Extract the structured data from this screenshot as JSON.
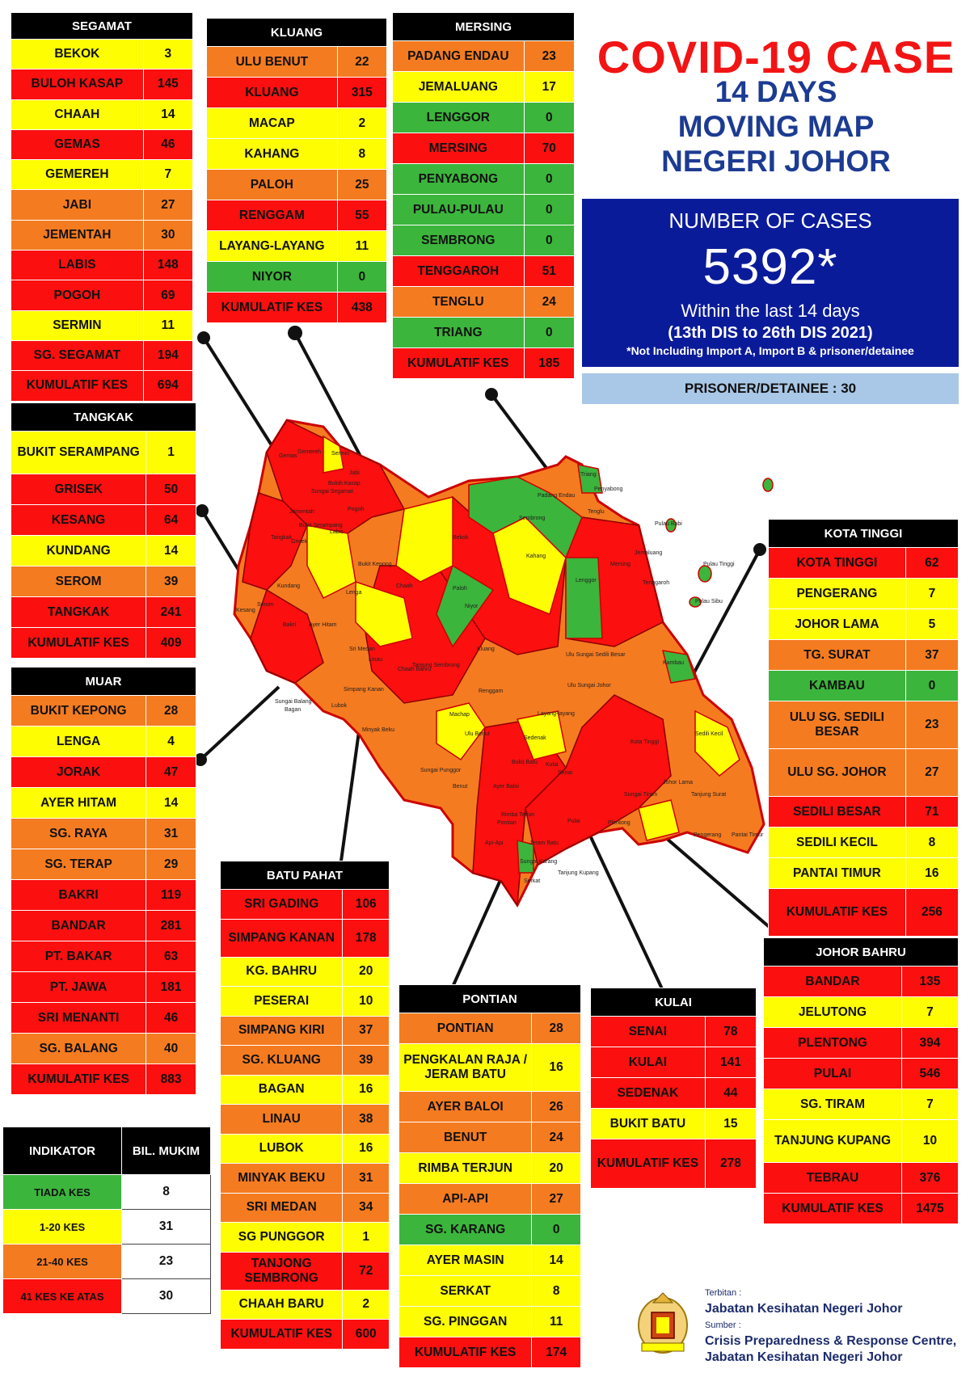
{
  "title": {
    "line1": "COVID-19 CASE",
    "line2": "14 DAYS",
    "line3": "MOVING MAP",
    "line4": "NEGERI JOHOR"
  },
  "summary": {
    "label": "NUMBER OF CASES",
    "total": "5392*",
    "period": "Within the last 14 days",
    "range": "(13th DIS to 26th DIS 2021)",
    "note": "*Not Including Import A, Import B & prisoner/detainee",
    "prisoner": "PRISONER/DETAINEE : 30"
  },
  "colors": {
    "red": "#fb0f0f",
    "orange": "#f57b20",
    "yellow": "#fefd02",
    "green": "#3bb53b"
  },
  "districts": {
    "segamat": {
      "name": "SEGAMAT",
      "rows": [
        {
          "area": "BEKOK",
          "cases": "3",
          "level": "yel"
        },
        {
          "area": "BULOH KASAP",
          "cases": "145",
          "level": "red"
        },
        {
          "area": "CHAAH",
          "cases": "14",
          "level": "yel"
        },
        {
          "area": "GEMAS",
          "cases": "46",
          "level": "red"
        },
        {
          "area": "GEMEREH",
          "cases": "7",
          "level": "yel"
        },
        {
          "area": "JABI",
          "cases": "27",
          "level": "ora"
        },
        {
          "area": "JEMENTAH",
          "cases": "30",
          "level": "ora"
        },
        {
          "area": "LABIS",
          "cases": "148",
          "level": "red"
        },
        {
          "area": "POGOH",
          "cases": "69",
          "level": "red"
        },
        {
          "area": "SERMIN",
          "cases": "11",
          "level": "yel"
        },
        {
          "area": "SG. SEGAMAT",
          "cases": "194",
          "level": "red"
        },
        {
          "area": "KUMULATIF KES",
          "cases": "694",
          "level": "red"
        }
      ]
    },
    "kluang": {
      "name": "KLUANG",
      "rows": [
        {
          "area": "ULU BENUT",
          "cases": "22",
          "level": "ora"
        },
        {
          "area": "KLUANG",
          "cases": "315",
          "level": "red"
        },
        {
          "area": "MACAP",
          "cases": "2",
          "level": "yel"
        },
        {
          "area": "KAHANG",
          "cases": "8",
          "level": "yel"
        },
        {
          "area": "PALOH",
          "cases": "25",
          "level": "ora"
        },
        {
          "area": "RENGGAM",
          "cases": "55",
          "level": "red"
        },
        {
          "area": "LAYANG-LAYANG",
          "cases": "11",
          "level": "yel"
        },
        {
          "area": "NIYOR",
          "cases": "0",
          "level": "gre"
        },
        {
          "area": "KUMULATIF KES",
          "cases": "438",
          "level": "red"
        }
      ]
    },
    "mersing": {
      "name": "MERSING",
      "rows": [
        {
          "area": "PADANG ENDAU",
          "cases": "23",
          "level": "ora"
        },
        {
          "area": "JEMALUANG",
          "cases": "17",
          "level": "yel"
        },
        {
          "area": "LENGGOR",
          "cases": "0",
          "level": "gre"
        },
        {
          "area": "MERSING",
          "cases": "70",
          "level": "red"
        },
        {
          "area": "PENYABONG",
          "cases": "0",
          "level": "gre"
        },
        {
          "area": "PULAU-PULAU",
          "cases": "0",
          "level": "gre"
        },
        {
          "area": "SEMBRONG",
          "cases": "0",
          "level": "gre"
        },
        {
          "area": "TENGGAROH",
          "cases": "51",
          "level": "red"
        },
        {
          "area": "TENGLU",
          "cases": "24",
          "level": "ora"
        },
        {
          "area": "TRIANG",
          "cases": "0",
          "level": "gre"
        },
        {
          "area": "KUMULATIF KES",
          "cases": "185",
          "level": "red"
        }
      ]
    },
    "tangkak": {
      "name": "TANGKAK",
      "rows": [
        {
          "area": "BUKIT SERAMPANG",
          "cases": "1",
          "level": "yel",
          "tall": true
        },
        {
          "area": "GRISEK",
          "cases": "50",
          "level": "red"
        },
        {
          "area": "KESANG",
          "cases": "64",
          "level": "red"
        },
        {
          "area": "KUNDANG",
          "cases": "14",
          "level": "yel"
        },
        {
          "area": "SEROM",
          "cases": "39",
          "level": "ora"
        },
        {
          "area": "TANGKAK",
          "cases": "241",
          "level": "red"
        },
        {
          "area": "KUMULATIF KES",
          "cases": "409",
          "level": "red"
        }
      ]
    },
    "muar": {
      "name": "MUAR",
      "rows": [
        {
          "area": "BUKIT KEPONG",
          "cases": "28",
          "level": "ora"
        },
        {
          "area": "LENGA",
          "cases": "4",
          "level": "yel"
        },
        {
          "area": "JORAK",
          "cases": "47",
          "level": "red"
        },
        {
          "area": "AYER HITAM",
          "cases": "14",
          "level": "yel"
        },
        {
          "area": "SG. RAYA",
          "cases": "31",
          "level": "ora"
        },
        {
          "area": "SG. TERAP",
          "cases": "29",
          "level": "ora"
        },
        {
          "area": "BAKRI",
          "cases": "119",
          "level": "red"
        },
        {
          "area": "BANDAR",
          "cases": "281",
          "level": "red"
        },
        {
          "area": "PT. BAKAR",
          "cases": "63",
          "level": "red"
        },
        {
          "area": "PT. JAWA",
          "cases": "181",
          "level": "red"
        },
        {
          "area": "SRI MENANTI",
          "cases": "46",
          "level": "red"
        },
        {
          "area": "SG. BALANG",
          "cases": "40",
          "level": "ora"
        },
        {
          "area": "KUMULATIF KES",
          "cases": "883",
          "level": "red"
        }
      ]
    },
    "kota_tinggi": {
      "name": "KOTA TINGGI",
      "rows": [
        {
          "area": "KOTA TINGGI",
          "cases": "62",
          "level": "red"
        },
        {
          "area": "PENGERANG",
          "cases": "7",
          "level": "yel"
        },
        {
          "area": "JOHOR LAMA",
          "cases": "5",
          "level": "yel"
        },
        {
          "area": "TG. SURAT",
          "cases": "37",
          "level": "ora"
        },
        {
          "area": "KAMBAU",
          "cases": "0",
          "level": "gre"
        },
        {
          "area": "ULU SG. SEDILI BESAR",
          "cases": "23",
          "level": "ora",
          "tall": true
        },
        {
          "area": "ULU  SG. JOHOR",
          "cases": "27",
          "level": "ora",
          "tall": true
        },
        {
          "area": "SEDILI BESAR",
          "cases": "71",
          "level": "red"
        },
        {
          "area": "SEDILI KECIL",
          "cases": "8",
          "level": "yel"
        },
        {
          "area": "PANTAI TIMUR",
          "cases": "16",
          "level": "yel"
        },
        {
          "area": "KUMULATIF KES",
          "cases": "256",
          "level": "red",
          "tall": true
        }
      ]
    },
    "batu_pahat": {
      "name": "BATU PAHAT",
      "rows": [
        {
          "area": "SRI GADING",
          "cases": "106",
          "level": "red"
        },
        {
          "area": "SIMPANG KANAN",
          "cases": "178",
          "level": "red",
          "tall": true
        },
        {
          "area": "KG. BAHRU",
          "cases": "20",
          "level": "yel"
        },
        {
          "area": "PESERAI",
          "cases": "10",
          "level": "yel"
        },
        {
          "area": "SIMPANG KIRI",
          "cases": "37",
          "level": "ora"
        },
        {
          "area": "SG. KLUANG",
          "cases": "39",
          "level": "ora"
        },
        {
          "area": "BAGAN",
          "cases": "16",
          "level": "yel"
        },
        {
          "area": "LINAU",
          "cases": "38",
          "level": "ora"
        },
        {
          "area": "LUBOK",
          "cases": "16",
          "level": "yel"
        },
        {
          "area": "MINYAK BEKU",
          "cases": "31",
          "level": "ora"
        },
        {
          "area": "SRI MEDAN",
          "cases": "34",
          "level": "ora"
        },
        {
          "area": "SG PUNGGOR",
          "cases": "1",
          "level": "yel"
        },
        {
          "area": "TANJONG SEMBRONG",
          "cases": "72",
          "level": "red",
          "tall": true
        },
        {
          "area": "CHAAH BARU",
          "cases": "2",
          "level": "yel"
        },
        {
          "area": "KUMULATIF KES",
          "cases": "600",
          "level": "red"
        }
      ]
    },
    "pontian": {
      "name": "PONTIAN",
      "rows": [
        {
          "area": "PONTIAN",
          "cases": "28",
          "level": "ora"
        },
        {
          "area": "PENGKALAN RAJA / JERAM BATU",
          "cases": "16",
          "level": "yel",
          "tall": true
        },
        {
          "area": "AYER BALOI",
          "cases": "26",
          "level": "ora"
        },
        {
          "area": "BENUT",
          "cases": "24",
          "level": "ora"
        },
        {
          "area": "RIMBA TERJUN",
          "cases": "20",
          "level": "yel"
        },
        {
          "area": "API-API",
          "cases": "27",
          "level": "ora"
        },
        {
          "area": "SG. KARANG",
          "cases": "0",
          "level": "gre"
        },
        {
          "area": "AYER MASIN",
          "cases": "14",
          "level": "yel"
        },
        {
          "area": "SERKAT",
          "cases": "8",
          "level": "yel"
        },
        {
          "area": "SG. PINGGAN",
          "cases": "11",
          "level": "yel"
        },
        {
          "area": "KUMULATIF KES",
          "cases": "174",
          "level": "red"
        }
      ]
    },
    "kulai": {
      "name": "KULAI",
      "rows": [
        {
          "area": "SENAI",
          "cases": "78",
          "level": "red"
        },
        {
          "area": "KULAI",
          "cases": "141",
          "level": "red"
        },
        {
          "area": "SEDENAK",
          "cases": "44",
          "level": "red"
        },
        {
          "area": "BUKIT BATU",
          "cases": "15",
          "level": "yel"
        },
        {
          "area": "KUMULATIF KES",
          "cases": "278",
          "level": "red",
          "tall": true
        }
      ]
    },
    "johor_bahru": {
      "name": "JOHOR BAHRU",
      "rows": [
        {
          "area": "BANDAR",
          "cases": "135",
          "level": "red"
        },
        {
          "area": "JELUTONG",
          "cases": "7",
          "level": "yel"
        },
        {
          "area": "PLENTONG",
          "cases": "394",
          "level": "red"
        },
        {
          "area": "PULAI",
          "cases": "546",
          "level": "red"
        },
        {
          "area": "SG. TIRAM",
          "cases": "7",
          "level": "yel"
        },
        {
          "area": "TANJUNG KUPANG",
          "cases": "10",
          "level": "yel",
          "tall": true
        },
        {
          "area": "TEBRAU",
          "cases": "376",
          "level": "red"
        },
        {
          "area": "KUMULATIF KES",
          "cases": "1475",
          "level": "red"
        }
      ]
    }
  },
  "legend": {
    "header_left": "INDIKATOR",
    "header_right": "BIL. MUKIM",
    "rows": [
      {
        "label": "TIADA KES",
        "count": "8",
        "level": "gre"
      },
      {
        "label": "1-20 KES",
        "count": "31",
        "level": "yel"
      },
      {
        "label": "21-40 KES",
        "count": "23",
        "level": "ora"
      },
      {
        "label": "41 KES KE ATAS",
        "count": "30",
        "level": "red"
      }
    ]
  },
  "publisher": {
    "label1": "Terbitan :",
    "name1": "Jabatan Kesihatan Negeri Johor",
    "label2": "Sumber :",
    "name2a": "Crisis Preparedness & Response Centre,",
    "name2b": "Jabatan Kesihatan Negeri Johor"
  },
  "map_labels": [
    "Gemas",
    "Gemereh",
    "Sermin",
    "Jabi",
    "Buloh Kasap",
    "Sungai Segamat",
    "Jementah",
    "Pogoh",
    "Labis",
    "Bekok",
    "Chaah",
    "Bukit Serampang",
    "Bukit Kepong",
    "Lenga",
    "Tangkak",
    "Grisek",
    "Kundang",
    "Serom",
    "Kesang",
    "Bakri",
    "Ayer Hitam",
    "Sri Medan",
    "Linau",
    "Paloh",
    "Niyor",
    "Kluang",
    "Renggam",
    "Kahang",
    "Lenggor",
    "Mersing",
    "Sembrong",
    "Padang Endau",
    "Triang",
    "Penyabong",
    "Tenglu",
    "Jemaluang",
    "Tenggaroh",
    "Pulau Babi",
    "Pulau Tinggi",
    "Pulau Sibu",
    "Ulu Sungai Sedili Besar",
    "Ulu Sungai Johor",
    "Kambau",
    "Kota Tinggi",
    "Sedili Kecil",
    "Johor Lama",
    "Tanjung Surat",
    "Pengerang",
    "Pantai Timur",
    "Layang-layang",
    "Sedenak",
    "Kulai",
    "Senai",
    "Bukit Batu",
    "Sungai Tiram",
    "Pulai",
    "Plentong",
    "Ulu Benut",
    "Benut",
    "Pontian",
    "Serkat",
    "Tanjung Kupang",
    "Machap",
    "Chaah Bahru",
    "Tanjung Sembrong",
    "Simpang Kanan",
    "Lubok",
    "Minyak Beku",
    "Bagan",
    "Sungai Balang",
    "Sungai Punggor",
    "Api-Api",
    "Rimba Terjun",
    "Ayer Baloi",
    "Jeram Batu",
    "Sungai Karang"
  ]
}
